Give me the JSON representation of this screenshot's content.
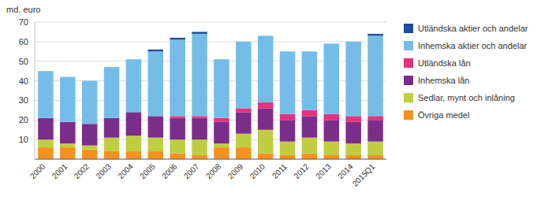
{
  "chart_data": {
    "type": "bar",
    "stacked": true,
    "ylabel": "md. euro",
    "categories": [
      "2000",
      "2001",
      "2002",
      "2003",
      "2004",
      "2005",
      "2006",
      "2007",
      "2008",
      "2009",
      "2010",
      "2011",
      "2012",
      "2013",
      "2014",
      "2015Q1"
    ],
    "series": [
      {
        "name": "Övriga medel",
        "color": "#f5921e",
        "values": [
          6,
          6,
          5,
          4,
          4,
          4,
          3,
          2,
          6,
          6,
          3,
          2,
          3,
          2,
          2,
          2
        ]
      },
      {
        "name": "Sedlar, mynt och inlåning",
        "color": "#bfce41",
        "values": [
          4,
          2,
          2,
          7,
          8,
          7,
          7,
          8,
          2,
          7,
          12,
          7,
          8,
          7,
          6,
          7
        ]
      },
      {
        "name": "Inhemska lån",
        "color": "#7b2d8b",
        "values": [
          11,
          11,
          11,
          10,
          12,
          11,
          11,
          11,
          11,
          11,
          11,
          11,
          11,
          11,
          11,
          11
        ]
      },
      {
        "name": "Utländska lån",
        "color": "#e8317e",
        "values": [
          0,
          0,
          0,
          0,
          0,
          0,
          1,
          1,
          2,
          2,
          3,
          3,
          3,
          3,
          3,
          2
        ]
      },
      {
        "name": "Inhemska aktier och andelar",
        "color": "#75bde8",
        "values": [
          24,
          23,
          22,
          26,
          27,
          33,
          39,
          42,
          30,
          34,
          34,
          32,
          30,
          36,
          38,
          41
        ]
      },
      {
        "name": "Utländska aktier och andelar",
        "color": "#1f4e9c",
        "values": [
          0,
          0,
          0,
          0,
          0,
          1,
          1,
          1,
          0,
          0,
          0,
          0,
          0,
          0,
          0,
          1
        ]
      }
    ],
    "ylim": [
      0,
      70
    ],
    "yticks": [
      10,
      20,
      30,
      40,
      50,
      60,
      70
    ],
    "grid": true,
    "legend": "right"
  }
}
